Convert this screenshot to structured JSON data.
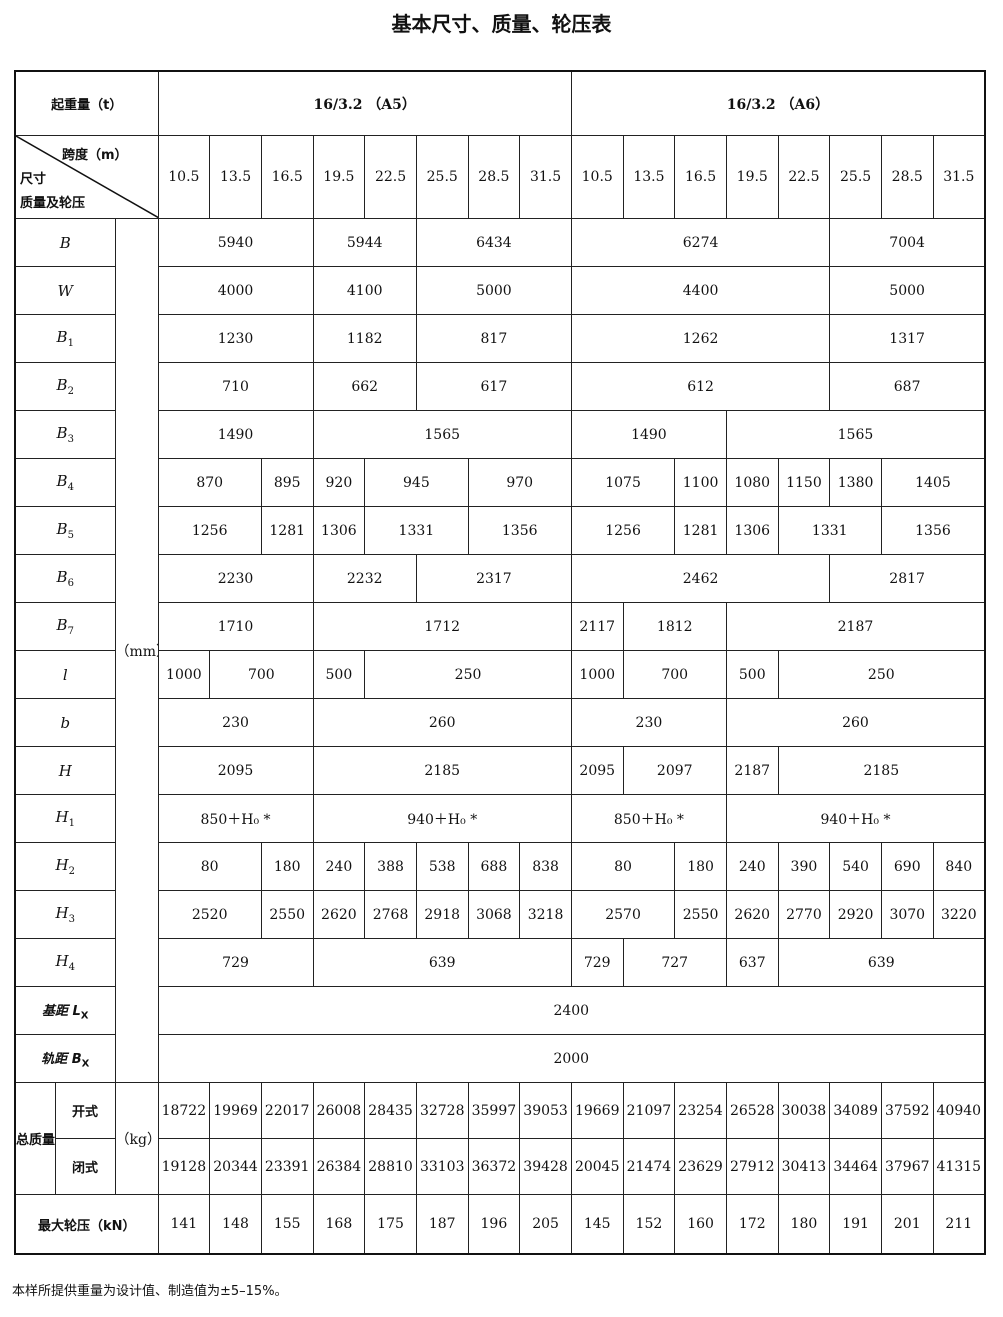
{
  "title": "基本尺寸、质量、轮压表",
  "header": {
    "capacity_label": "起重量（t）",
    "groups": [
      "16/3.2  （A5）",
      "16/3.2  （A6）"
    ],
    "span_label": "跨度（m）",
    "dim_label": "尺寸",
    "mass_label": "质量及轮压",
    "spans": [
      "10.5",
      "13.5",
      "16.5",
      "19.5",
      "22.5",
      "25.5",
      "28.5",
      "31.5",
      "10.5",
      "13.5",
      "16.5",
      "19.5",
      "22.5",
      "25.5",
      "28.5",
      "31.5"
    ]
  },
  "unit_mm": "（mm）",
  "dim_rows": [
    {
      "label": "B",
      "sub": "",
      "cells": [
        {
          "v": "5940",
          "s": 3
        },
        {
          "v": "5944",
          "s": 2
        },
        {
          "v": "6434",
          "s": 3
        },
        {
          "v": "6274",
          "s": 5
        },
        {
          "v": "7004",
          "s": 3
        }
      ]
    },
    {
      "label": "W",
      "sub": "",
      "cells": [
        {
          "v": "4000",
          "s": 3
        },
        {
          "v": "4100",
          "s": 2
        },
        {
          "v": "5000",
          "s": 3
        },
        {
          "v": "4400",
          "s": 5
        },
        {
          "v": "5000",
          "s": 3
        }
      ]
    },
    {
      "label": "B",
      "sub": "1",
      "cells": [
        {
          "v": "1230",
          "s": 3
        },
        {
          "v": "1182",
          "s": 2
        },
        {
          "v": "817",
          "s": 3
        },
        {
          "v": "1262",
          "s": 5
        },
        {
          "v": "1317",
          "s": 3
        }
      ]
    },
    {
      "label": "B",
      "sub": "2",
      "cells": [
        {
          "v": "710",
          "s": 3
        },
        {
          "v": "662",
          "s": 2
        },
        {
          "v": "617",
          "s": 3
        },
        {
          "v": "612",
          "s": 5
        },
        {
          "v": "687",
          "s": 3
        }
      ]
    },
    {
      "label": "B",
      "sub": "3",
      "cells": [
        {
          "v": "1490",
          "s": 3
        },
        {
          "v": "1565",
          "s": 5
        },
        {
          "v": "1490",
          "s": 3
        },
        {
          "v": "1565",
          "s": 5
        }
      ]
    },
    {
      "label": "B",
      "sub": "4",
      "cells": [
        {
          "v": "870",
          "s": 2
        },
        {
          "v": "895",
          "s": 1
        },
        {
          "v": "920",
          "s": 1
        },
        {
          "v": "945",
          "s": 2
        },
        {
          "v": "970",
          "s": 2,
          "nb": true
        },
        {
          "v": "1075",
          "s": 2
        },
        {
          "v": "1100",
          "s": 1
        },
        {
          "v": "1080",
          "s": 1
        },
        {
          "v": "1150",
          "s": 1
        },
        {
          "v": "1380",
          "s": 1
        },
        {
          "v": "1405",
          "s": 2
        }
      ]
    },
    {
      "label": "B",
      "sub": "5",
      "cells": [
        {
          "v": "1256",
          "s": 2
        },
        {
          "v": "1281",
          "s": 1
        },
        {
          "v": "1306",
          "s": 1
        },
        {
          "v": "1331",
          "s": 2
        },
        {
          "v": "1356",
          "s": 2,
          "nb": true
        },
        {
          "v": "1256",
          "s": 2
        },
        {
          "v": "1281",
          "s": 1
        },
        {
          "v": "1306",
          "s": 1
        },
        {
          "v": "1331",
          "s": 2
        },
        {
          "v": "1356",
          "s": 2
        }
      ]
    },
    {
      "label": "B",
      "sub": "6",
      "cells": [
        {
          "v": "2230",
          "s": 3
        },
        {
          "v": "2232",
          "s": 2
        },
        {
          "v": "2317",
          "s": 3
        },
        {
          "v": "2462",
          "s": 5
        },
        {
          "v": "2817",
          "s": 3
        }
      ]
    },
    {
      "label": "B",
      "sub": "7",
      "cells": [
        {
          "v": "1710",
          "s": 3
        },
        {
          "v": "1712",
          "s": 5
        },
        {
          "v": "2117",
          "s": 1
        },
        {
          "v": "1812",
          "s": 2
        },
        {
          "v": "2187",
          "s": 5
        }
      ]
    },
    {
      "label": "l",
      "sub": "",
      "cells": [
        {
          "v": "1000",
          "s": 1
        },
        {
          "v": "700",
          "s": 2
        },
        {
          "v": "500",
          "s": 1
        },
        {
          "v": "250",
          "s": 4
        },
        {
          "v": "1000",
          "s": 1
        },
        {
          "v": "700",
          "s": 2
        },
        {
          "v": "500",
          "s": 1
        },
        {
          "v": "250",
          "s": 4
        }
      ]
    },
    {
      "label": "b",
      "sub": "",
      "cells": [
        {
          "v": "230",
          "s": 3
        },
        {
          "v": "260",
          "s": 5
        },
        {
          "v": "230",
          "s": 3
        },
        {
          "v": "260",
          "s": 5
        }
      ]
    },
    {
      "label": "H",
      "sub": "",
      "cells": [
        {
          "v": "2095",
          "s": 3
        },
        {
          "v": "2185",
          "s": 5
        },
        {
          "v": "2095",
          "s": 1
        },
        {
          "v": "2097",
          "s": 2
        },
        {
          "v": "2187",
          "s": 1
        },
        {
          "v": "2185",
          "s": 4
        }
      ]
    },
    {
      "label": "H",
      "sub": "1",
      "cells": [
        {
          "v": "850＋H₀ *",
          "s": 3
        },
        {
          "v": "940＋H₀ *",
          "s": 5
        },
        {
          "v": "850＋H₀ *",
          "s": 3
        },
        {
          "v": "940＋H₀ *",
          "s": 5
        }
      ]
    },
    {
      "label": "H",
      "sub": "2",
      "cells": [
        {
          "v": "80",
          "s": 2
        },
        {
          "v": "180",
          "s": 1
        },
        {
          "v": "240",
          "s": 1
        },
        {
          "v": "388",
          "s": 1
        },
        {
          "v": "538",
          "s": 1
        },
        {
          "v": "688",
          "s": 1
        },
        {
          "v": "838",
          "s": 1
        },
        {
          "v": "80",
          "s": 2
        },
        {
          "v": "180",
          "s": 1
        },
        {
          "v": "240",
          "s": 1
        },
        {
          "v": "390",
          "s": 1
        },
        {
          "v": "540",
          "s": 1
        },
        {
          "v": "690",
          "s": 1
        },
        {
          "v": "840",
          "s": 1
        }
      ]
    },
    {
      "label": "H",
      "sub": "3",
      "cells": [
        {
          "v": "2520",
          "s": 2
        },
        {
          "v": "2550",
          "s": 1
        },
        {
          "v": "2620",
          "s": 1
        },
        {
          "v": "2768",
          "s": 1
        },
        {
          "v": "2918",
          "s": 1
        },
        {
          "v": "3068",
          "s": 1
        },
        {
          "v": "3218",
          "s": 1
        },
        {
          "v": "2570",
          "s": 2
        },
        {
          "v": "2550",
          "s": 1
        },
        {
          "v": "2620",
          "s": 1
        },
        {
          "v": "2770",
          "s": 1
        },
        {
          "v": "2920",
          "s": 1
        },
        {
          "v": "3070",
          "s": 1
        },
        {
          "v": "3220",
          "s": 1
        }
      ]
    },
    {
      "label": "H",
      "sub": "4",
      "cells": [
        {
          "v": "729",
          "s": 3
        },
        {
          "v": "639",
          "s": 5
        },
        {
          "v": "729",
          "s": 1
        },
        {
          "v": "727",
          "s": 2
        },
        {
          "v": "637",
          "s": 1
        },
        {
          "v": "639",
          "s": 4
        }
      ]
    },
    {
      "label": "基距 L",
      "sub": "X",
      "cells": [
        {
          "v": "2400",
          "s": 16
        }
      ]
    },
    {
      "label": "轨距 B",
      "sub": "X",
      "cells": [
        {
          "v": "2000",
          "s": 16
        }
      ]
    }
  ],
  "mass": {
    "label": "总质量",
    "unit": "（kg）",
    "open_label": "开式",
    "closed_label": "闭式",
    "open": [
      "18722",
      "19969",
      "22017",
      "26008",
      "28435",
      "32728",
      "35997",
      "39053",
      "19669",
      "21097",
      "23254",
      "26528",
      "30038",
      "34089",
      "37592",
      "40940"
    ],
    "closed": [
      "19128",
      "20344",
      "23391",
      "26384",
      "28810",
      "33103",
      "36372",
      "39428",
      "20045",
      "21474",
      "23629",
      "27912",
      "30413",
      "34464",
      "37967",
      "41315"
    ]
  },
  "wheel": {
    "label": "最大轮压（kN）",
    "values": [
      "141",
      "148",
      "155",
      "168",
      "175",
      "187",
      "196",
      "205",
      "145",
      "152",
      "160",
      "172",
      "180",
      "191",
      "201",
      "211"
    ]
  },
  "footnote": "本样所提供重量为设计值、制造值为±5–15%。"
}
